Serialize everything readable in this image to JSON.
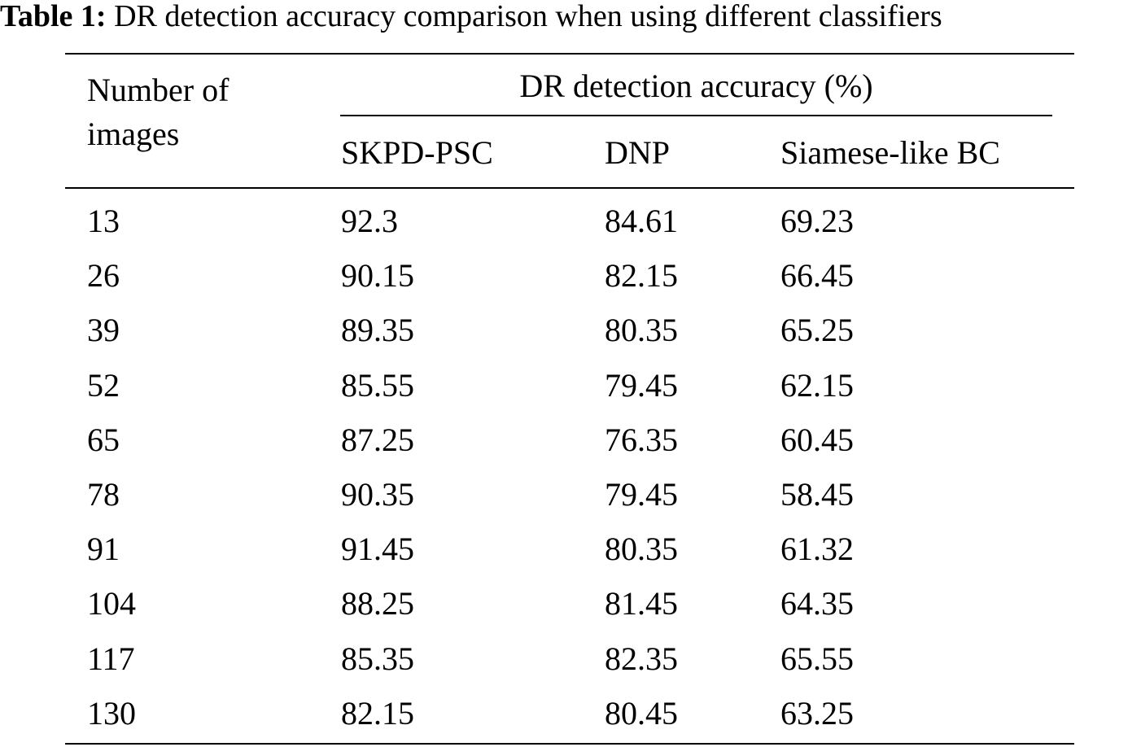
{
  "caption": {
    "label": "Table 1:",
    "text": "DR detection accuracy comparison when using different classifiers"
  },
  "header": {
    "row_label_line1": "Number of",
    "row_label_line2": "images",
    "group_label": "DR detection accuracy (%)",
    "columns": [
      "SKPD-PSC",
      "DNP",
      "Siamese-like BC"
    ]
  },
  "rows": [
    [
      "13",
      "92.3",
      "84.61",
      "69.23"
    ],
    [
      "26",
      "90.15",
      "82.15",
      "66.45"
    ],
    [
      "39",
      "89.35",
      "80.35",
      "65.25"
    ],
    [
      "52",
      "85.55",
      "79.45",
      "62.15"
    ],
    [
      "65",
      "87.25",
      "76.35",
      "60.45"
    ],
    [
      "78",
      "90.35",
      "79.45",
      "58.45"
    ],
    [
      "91",
      "91.45",
      "80.35",
      "61.32"
    ],
    [
      "104",
      "88.25",
      "81.45",
      "64.35"
    ],
    [
      "117",
      "85.35",
      "82.35",
      "65.55"
    ],
    [
      "130",
      "82.15",
      "80.45",
      "63.25"
    ]
  ]
}
